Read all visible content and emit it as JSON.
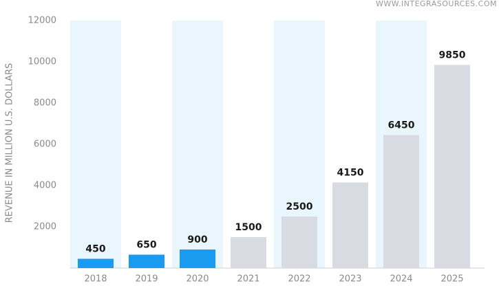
{
  "chart_data": {
    "type": "bar",
    "source": "WWW.INTEGRASOURCES.COM",
    "y_label": "REVENUE IN MILLION U.S. DOLLARS",
    "categories": [
      "2018",
      "2019",
      "2020",
      "2021",
      "2022",
      "2023",
      "2024",
      "2025"
    ],
    "values": [
      450,
      650,
      900,
      1500,
      2500,
      4150,
      6450,
      9850
    ],
    "colors": [
      "#1a9bf0",
      "#1a9bf0",
      "#1a9bf0",
      "#d9dbe3",
      "#d9dbe3",
      "#d9dbe3",
      "#d9dbe3",
      "#d9dbe3"
    ],
    "ylim": [
      0,
      12000
    ],
    "yticks": [
      2000,
      4000,
      6000,
      8000,
      10000,
      12000
    ],
    "grid": false
  }
}
